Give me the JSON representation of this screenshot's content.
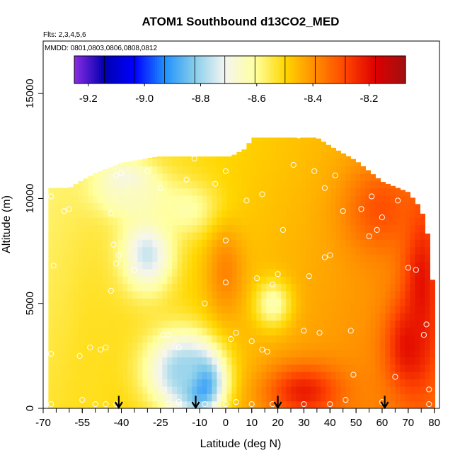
{
  "chart_data": {
    "type": "heatmap",
    "title": "ATOM1 Southbound d13CO2_MED",
    "subtitle_flights": "Flts: 2,3,4,5,6",
    "subtitle_dates": "MMDD: 0801,0803,0806,0808,0812",
    "xlabel": "Latitude (deg N)",
    "ylabel": "Altitude (m)",
    "xlim": [
      -70,
      82
    ],
    "ylim": [
      0,
      17500
    ],
    "x_ticks": [
      -70,
      -55,
      -40,
      -25,
      -10,
      0,
      10,
      20,
      30,
      40,
      50,
      60,
      70,
      80
    ],
    "x_tick_labels": [
      "-70",
      "-55",
      "-40",
      "-25",
      "-10",
      "0",
      "10",
      "20",
      "30",
      "40",
      "50",
      "60",
      "70",
      "80"
    ],
    "y_ticks": [
      0,
      5000,
      10000,
      15000
    ],
    "y_tick_labels": [
      "0",
      "5000",
      "10000",
      "15000"
    ],
    "colorbar": {
      "range": [
        -9.25,
        -8.07
      ],
      "ticks": [
        -9.2,
        -9.0,
        -8.8,
        -8.6,
        -8.4,
        -8.2
      ],
      "tick_labels": [
        "-9.2",
        "-9.0",
        "-8.8",
        "-8.6",
        "-8.4",
        "-8.2"
      ],
      "colors": [
        "#8a2be2",
        "#0000b0",
        "#0000ff",
        "#1e90ff",
        "#87ceeb",
        "#f5f5f0",
        "#ffffa0",
        "#ffd700",
        "#ff8c00",
        "#ff4500",
        "#dd0000",
        "#a01010"
      ]
    },
    "background_value": -8.45,
    "envelope": [
      {
        "lat": -68,
        "top": 10500
      },
      {
        "lat": -60,
        "top": 10500
      },
      {
        "lat": -56,
        "top": 10800
      },
      {
        "lat": -50,
        "top": 11200
      },
      {
        "lat": -40,
        "top": 11700
      },
      {
        "lat": -26,
        "top": 12000
      },
      {
        "lat": 2,
        "top": 12000
      },
      {
        "lat": 8,
        "top": 12400
      },
      {
        "lat": 10,
        "top": 12900
      },
      {
        "lat": 35,
        "top": 12900
      },
      {
        "lat": 40,
        "top": 12500
      },
      {
        "lat": 50,
        "top": 11800
      },
      {
        "lat": 60,
        "top": 10800
      },
      {
        "lat": 70,
        "top": 10300
      },
      {
        "lat": 75,
        "top": 9500
      },
      {
        "lat": 78,
        "top": 8000
      },
      {
        "lat": 80,
        "top": 5000
      },
      {
        "lat": 81,
        "top": 3000
      }
    ],
    "features": [
      {
        "lat": -10,
        "alt": 1200,
        "value": -9.05,
        "sx": 6,
        "sy": 1000
      },
      {
        "lat": -17,
        "alt": 1800,
        "value": -8.8,
        "sx": 10,
        "sy": 1400
      },
      {
        "lat": -30,
        "alt": 7400,
        "value": -8.76,
        "sx": 7,
        "sy": 1300
      },
      {
        "lat": -38,
        "alt": 10800,
        "value": -8.72,
        "sx": 8,
        "sy": 700
      },
      {
        "lat": -35,
        "alt": 10000,
        "value": -8.65,
        "sx": 10,
        "sy": 700
      },
      {
        "lat": -15,
        "alt": 9500,
        "value": -8.62,
        "sx": 9,
        "sy": 900
      },
      {
        "lat": 18,
        "alt": 5000,
        "value": -8.63,
        "sx": 5,
        "sy": 800
      },
      {
        "lat": -52,
        "alt": 1500,
        "value": -8.52,
        "sx": 5,
        "sy": 3500
      },
      {
        "lat": 30,
        "alt": 800,
        "value": -8.22,
        "sx": 10,
        "sy": 900
      },
      {
        "lat": 75,
        "alt": 6000,
        "value": -8.2,
        "sx": 5,
        "sy": 3000
      },
      {
        "lat": 70,
        "alt": 3000,
        "value": -8.2,
        "sx": 6,
        "sy": 1500
      },
      {
        "lat": 0,
        "alt": 6500,
        "value": -8.38,
        "sx": 5,
        "sy": 1500
      },
      {
        "lat": 60,
        "alt": 9500,
        "value": -8.3,
        "sx": 10,
        "sy": 1500
      }
    ],
    "observations": [
      [
        -67,
        10100
      ],
      [
        -66,
        6800
      ],
      [
        -67,
        2600
      ],
      [
        -67,
        200
      ],
      [
        -62,
        9400
      ],
      [
        -60,
        9500
      ],
      [
        -56,
        2500
      ],
      [
        -52,
        2900
      ],
      [
        -48,
        2800
      ],
      [
        -46,
        2900
      ],
      [
        -44,
        5600
      ],
      [
        -42,
        6900
      ],
      [
        -41,
        7300
      ],
      [
        -43,
        7800
      ],
      [
        -44,
        9300
      ],
      [
        -42,
        11100
      ],
      [
        -40,
        11200
      ],
      [
        -35,
        6600
      ],
      [
        -30,
        11300
      ],
      [
        -24,
        3500
      ],
      [
        -22,
        3500
      ],
      [
        -18,
        2900
      ],
      [
        -12,
        11900
      ],
      [
        -8,
        5000
      ],
      [
        0,
        11300
      ],
      [
        0,
        8000
      ],
      [
        0,
        6000
      ],
      [
        2,
        3300
      ],
      [
        4,
        3600
      ],
      [
        -4,
        10700
      ],
      [
        8,
        9900
      ],
      [
        10,
        3200
      ],
      [
        12,
        6200
      ],
      [
        14,
        2800
      ],
      [
        16,
        2700
      ],
      [
        18,
        5900
      ],
      [
        20,
        6400
      ],
      [
        22,
        8500
      ],
      [
        26,
        11600
      ],
      [
        28,
        13000
      ],
      [
        30,
        3700
      ],
      [
        32,
        6300
      ],
      [
        34,
        11300
      ],
      [
        36,
        3600
      ],
      [
        38,
        7200
      ],
      [
        40,
        7300
      ],
      [
        42,
        11100
      ],
      [
        45,
        9400
      ],
      [
        48,
        3700
      ],
      [
        49,
        1600
      ],
      [
        52,
        9500
      ],
      [
        55,
        8200
      ],
      [
        58,
        8500
      ],
      [
        60,
        9100
      ],
      [
        65,
        1500
      ],
      [
        70,
        6700
      ],
      [
        73,
        6600
      ],
      [
        76,
        3500
      ],
      [
        77,
        4000
      ],
      [
        78,
        900
      ],
      [
        78,
        200
      ],
      [
        -55,
        400
      ],
      [
        -50,
        200
      ],
      [
        -46,
        200
      ],
      [
        -42,
        200
      ],
      [
        -22,
        200
      ],
      [
        -18,
        300
      ],
      [
        -8,
        200
      ],
      [
        0,
        200
      ],
      [
        4,
        300
      ],
      [
        10,
        200
      ],
      [
        18,
        200
      ],
      [
        30,
        200
      ],
      [
        40,
        200
      ],
      [
        46,
        400
      ],
      [
        60,
        300
      ],
      [
        -25,
        10500
      ],
      [
        -15,
        10900
      ],
      [
        14,
        10200
      ],
      [
        38,
        10500
      ],
      [
        56,
        10100
      ],
      [
        66,
        9900
      ]
    ],
    "arrows_lat": [
      -41,
      -11.5,
      20,
      61
    ]
  }
}
